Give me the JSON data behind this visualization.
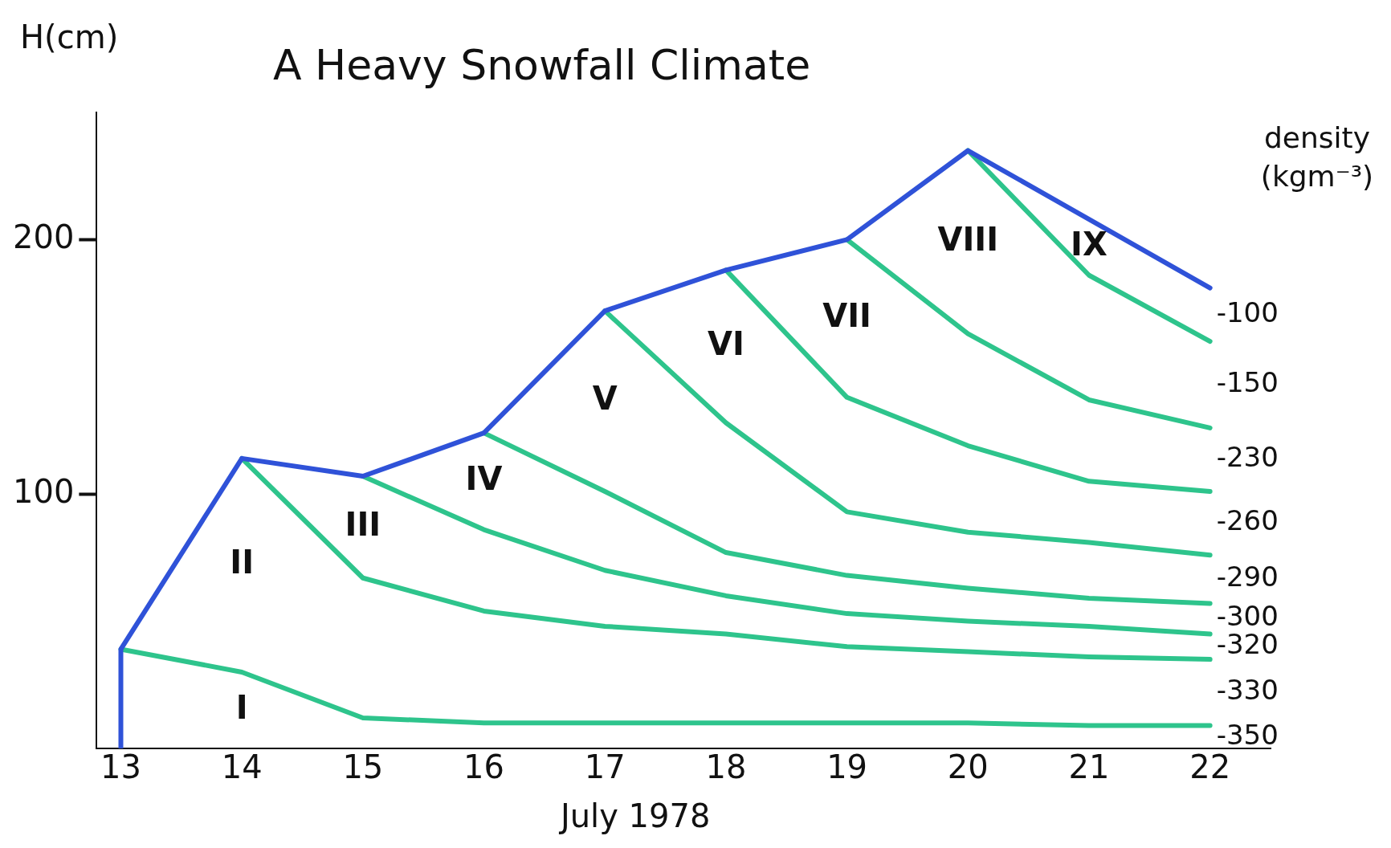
{
  "chart_data": {
    "type": "line",
    "title": "A Heavy Snowfall Climate",
    "xlabel": "July 1978",
    "ylabel": "H(cm)",
    "y2label": "density (kgm⁻³)",
    "xlim": [
      12.8,
      22.5
    ],
    "xticks": [
      13,
      14,
      15,
      16,
      17,
      18,
      19,
      20,
      21,
      22
    ],
    "ylim": [
      0,
      250
    ],
    "yticks": [
      100,
      200
    ],
    "grid": false,
    "legend": false,
    "marker": "none",
    "line_style": "solid",
    "series": [
      {
        "color": "#2f52d8",
        "x": [
          13,
          13,
          14,
          15,
          16,
          17,
          18,
          19,
          20,
          22
        ],
        "values": [
          0,
          39,
          114,
          107,
          124,
          172,
          188,
          200,
          235,
          181
        ]
      },
      {
        "color": "#2ec48c",
        "x": [
          13,
          14,
          15,
          16,
          17,
          18,
          19,
          20,
          21,
          22
        ],
        "values": [
          39,
          30,
          12,
          10,
          10,
          10,
          10,
          10,
          9,
          9
        ]
      },
      {
        "color": "#2ec48c",
        "x": [
          14,
          15,
          16,
          17,
          18,
          19,
          20,
          21,
          22
        ],
        "values": [
          114,
          67,
          54,
          48,
          45,
          40,
          38,
          36,
          35
        ]
      },
      {
        "color": "#2ec48c",
        "x": [
          15,
          16,
          17,
          18,
          19,
          20,
          21,
          22
        ],
        "values": [
          107,
          86,
          70,
          60,
          53,
          50,
          48,
          45
        ]
      },
      {
        "color": "#2ec48c",
        "x": [
          16,
          17,
          18,
          19,
          20,
          21,
          22
        ],
        "values": [
          124,
          101,
          77,
          68,
          63,
          59,
          57
        ]
      },
      {
        "color": "#2ec48c",
        "x": [
          17,
          18,
          19,
          20,
          21,
          22
        ],
        "values": [
          172,
          128,
          93,
          85,
          81,
          76
        ]
      },
      {
        "color": "#2ec48c",
        "x": [
          18,
          19,
          20,
          21,
          22
        ],
        "values": [
          188,
          138,
          119,
          105,
          101
        ]
      },
      {
        "color": "#2ec48c",
        "x": [
          19,
          20,
          21,
          22
        ],
        "values": [
          200,
          163,
          137,
          126
        ]
      },
      {
        "color": "#2ec48c",
        "x": [
          20,
          21,
          22
        ],
        "values": [
          235,
          186,
          160
        ]
      }
    ],
    "annotations": [
      "I",
      "II",
      "III",
      "IV",
      "V",
      "VI",
      "VII",
      "VIII",
      "IX",
      "-100",
      "-150",
      "-230",
      "-260",
      "-290",
      "-300",
      "-320",
      "-330",
      "-350"
    ]
  }
}
